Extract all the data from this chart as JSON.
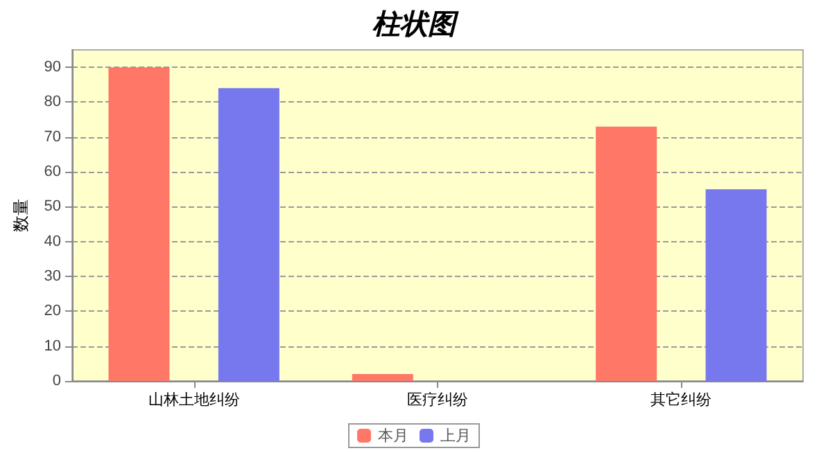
{
  "chart_data": {
    "type": "bar",
    "title": "柱状图",
    "ylabel": "数量",
    "categories": [
      "山林土地纠纷",
      "医疗纠纷",
      "其它纠纷"
    ],
    "series": [
      {
        "name": "本月",
        "color": "#ff7766",
        "values": [
          90,
          2,
          73
        ]
      },
      {
        "name": "上月",
        "color": "#7777ee",
        "values": [
          84,
          0,
          55
        ]
      }
    ],
    "ylim": [
      0,
      95
    ],
    "yticks": [
      0,
      10,
      20,
      30,
      40,
      50,
      60,
      70,
      80,
      90
    ],
    "grid": "y",
    "legend": "bottom"
  }
}
